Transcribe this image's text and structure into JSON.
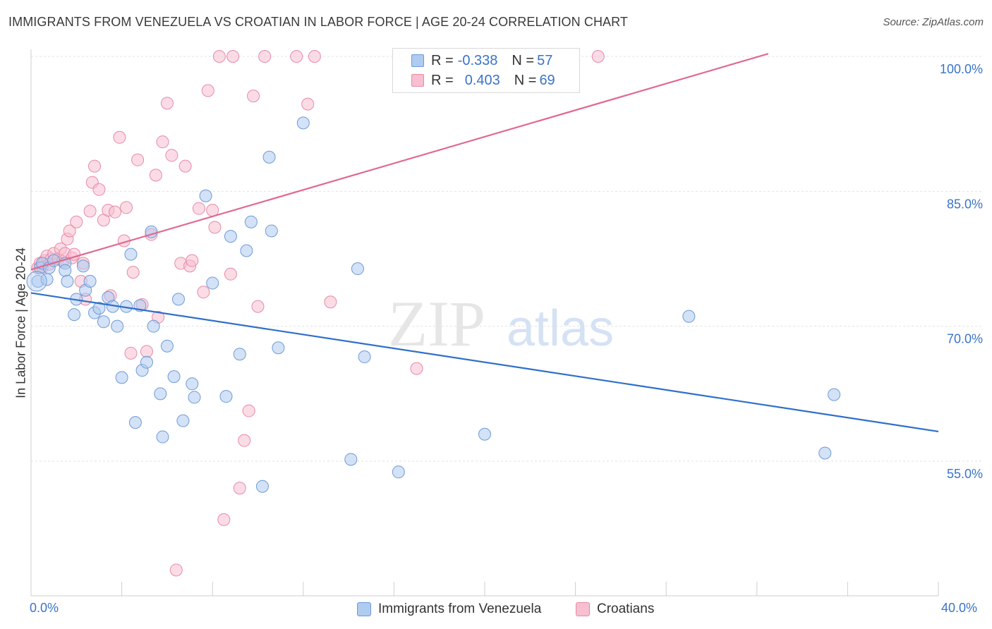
{
  "title": "IMMIGRANTS FROM VENEZUELA VS CROATIAN IN LABOR FORCE | AGE 20-24 CORRELATION CHART",
  "source": "Source: ZipAtlas.com",
  "watermark": {
    "zip": "ZIP",
    "atlas": "atlas"
  },
  "legend": {
    "rows": [
      {
        "r_label": "R = ",
        "r_value": "-0.338",
        "n_label": "N = ",
        "n_value": "57"
      },
      {
        "r_label": "R = ",
        "r_value": "0.403",
        "n_label": "N = ",
        "n_value": "69"
      }
    ]
  },
  "axis": {
    "ylabel": "In Labor Force | Age 20-24",
    "x_min_label": "0.0%",
    "x_max_label": "40.0%",
    "y_tick_labels": [
      "100.0%",
      "85.0%",
      "70.0%",
      "55.0%"
    ]
  },
  "colors": {
    "blue_fill": "#aecbf0",
    "blue_stroke": "#6f9ad6",
    "blue_line": "#2f6fc9",
    "pink_fill": "#f7bfcf",
    "pink_stroke": "#e68aa5",
    "pink_line": "#e0698f",
    "tick_text": "#3a74c8",
    "grid": "#e3e3e3"
  },
  "chart_data": {
    "type": "scatter",
    "title": "IMMIGRANTS FROM VENEZUELA VS CROATIAN IN LABOR FORCE | AGE 20-24 CORRELATION CHART",
    "xlabel": "",
    "ylabel": "In Labor Force | Age 20-24",
    "xlim": [
      0,
      40
    ],
    "ylim": [
      40,
      101
    ],
    "y_ticks": [
      55,
      70,
      85,
      100
    ],
    "grid": true,
    "legend_position": "top-center",
    "series": [
      {
        "name": "Immigrants from Venezuela",
        "color": "#aecbf0",
        "r": -0.338,
        "n": 57,
        "trend": {
          "x": [
            0,
            40
          ],
          "y": [
            73.7,
            58.3
          ]
        },
        "points": [
          [
            0.3,
            75.0
          ],
          [
            0.4,
            76.5
          ],
          [
            0.5,
            77.0
          ],
          [
            0.7,
            75.2
          ],
          [
            0.8,
            76.5
          ],
          [
            1.0,
            77.3
          ],
          [
            1.5,
            77.0
          ],
          [
            1.5,
            76.2
          ],
          [
            1.6,
            75.0
          ],
          [
            1.9,
            71.3
          ],
          [
            2.0,
            73.0
          ],
          [
            2.3,
            76.7
          ],
          [
            2.4,
            74.0
          ],
          [
            2.6,
            75.0
          ],
          [
            2.8,
            71.5
          ],
          [
            3.0,
            72.0
          ],
          [
            3.2,
            70.5
          ],
          [
            3.4,
            73.2
          ],
          [
            3.6,
            72.2
          ],
          [
            3.8,
            70.0
          ],
          [
            4.0,
            64.3
          ],
          [
            4.2,
            72.2
          ],
          [
            4.4,
            78.0
          ],
          [
            4.6,
            59.3
          ],
          [
            4.8,
            72.3
          ],
          [
            4.9,
            65.1
          ],
          [
            5.1,
            66.0
          ],
          [
            5.3,
            80.5
          ],
          [
            5.4,
            70.0
          ],
          [
            5.7,
            62.5
          ],
          [
            5.8,
            57.7
          ],
          [
            6.0,
            67.8
          ],
          [
            6.3,
            64.4
          ],
          [
            6.5,
            73.0
          ],
          [
            6.7,
            59.5
          ],
          [
            7.1,
            63.6
          ],
          [
            7.2,
            62.1
          ],
          [
            7.7,
            84.5
          ],
          [
            8.0,
            74.8
          ],
          [
            8.6,
            62.2
          ],
          [
            8.8,
            80.0
          ],
          [
            9.2,
            66.9
          ],
          [
            9.5,
            78.4
          ],
          [
            9.7,
            81.6
          ],
          [
            10.2,
            52.2
          ],
          [
            10.5,
            88.8
          ],
          [
            10.6,
            80.6
          ],
          [
            10.9,
            67.6
          ],
          [
            12.0,
            92.6
          ],
          [
            14.1,
            55.2
          ],
          [
            14.4,
            76.4
          ],
          [
            14.7,
            66.6
          ],
          [
            16.2,
            53.8
          ],
          [
            20.0,
            58.0
          ],
          [
            29.0,
            71.1
          ],
          [
            35.0,
            55.9
          ],
          [
            35.4,
            62.4
          ]
        ]
      },
      {
        "name": "Croatians",
        "color": "#f7bfcf",
        "r": 0.403,
        "n": 69,
        "trend": {
          "x": [
            0,
            32.5
          ],
          "y": [
            76.3,
            100.3
          ]
        },
        "points": [
          [
            0.3,
            76.5
          ],
          [
            0.4,
            77.0
          ],
          [
            0.5,
            76.6
          ],
          [
            0.6,
            77.3
          ],
          [
            0.7,
            77.8
          ],
          [
            0.8,
            76.9
          ],
          [
            0.9,
            77.5
          ],
          [
            1.0,
            78.1
          ],
          [
            1.2,
            77.5
          ],
          [
            1.3,
            78.6
          ],
          [
            1.4,
            77.2
          ],
          [
            1.5,
            78.1
          ],
          [
            1.6,
            79.7
          ],
          [
            1.7,
            80.6
          ],
          [
            1.8,
            77.6
          ],
          [
            1.9,
            78.0
          ],
          [
            2.0,
            81.6
          ],
          [
            2.2,
            75.0
          ],
          [
            2.3,
            77.0
          ],
          [
            2.4,
            73.0
          ],
          [
            2.6,
            82.8
          ],
          [
            2.7,
            86.0
          ],
          [
            2.8,
            87.8
          ],
          [
            3.0,
            85.2
          ],
          [
            3.2,
            81.8
          ],
          [
            3.4,
            82.9
          ],
          [
            3.5,
            73.4
          ],
          [
            3.7,
            82.7
          ],
          [
            3.9,
            91.0
          ],
          [
            4.1,
            79.5
          ],
          [
            4.2,
            83.2
          ],
          [
            4.4,
            67.0
          ],
          [
            4.5,
            76.0
          ],
          [
            4.7,
            88.5
          ],
          [
            4.9,
            72.4
          ],
          [
            5.1,
            67.2
          ],
          [
            5.3,
            80.2
          ],
          [
            5.5,
            86.8
          ],
          [
            5.6,
            71.0
          ],
          [
            5.8,
            90.5
          ],
          [
            6.0,
            94.8
          ],
          [
            6.2,
            89.0
          ],
          [
            6.4,
            42.9
          ],
          [
            6.6,
            77.0
          ],
          [
            6.8,
            87.8
          ],
          [
            7.0,
            76.7
          ],
          [
            7.1,
            77.3
          ],
          [
            7.4,
            83.1
          ],
          [
            7.6,
            73.8
          ],
          [
            7.8,
            96.2
          ],
          [
            8.0,
            82.9
          ],
          [
            8.1,
            81.0
          ],
          [
            8.3,
            100.0
          ],
          [
            8.5,
            48.5
          ],
          [
            8.8,
            75.8
          ],
          [
            8.9,
            100.0
          ],
          [
            9.2,
            52.0
          ],
          [
            9.4,
            57.3
          ],
          [
            9.6,
            60.6
          ],
          [
            9.8,
            95.6
          ],
          [
            10.0,
            72.2
          ],
          [
            10.3,
            100.0
          ],
          [
            11.7,
            100.0
          ],
          [
            12.2,
            94.7
          ],
          [
            12.5,
            100.0
          ],
          [
            13.2,
            72.7
          ],
          [
            16.5,
            100.0
          ],
          [
            17.0,
            65.3
          ],
          [
            25.0,
            100.0
          ]
        ]
      }
    ],
    "extra_points_note": ""
  },
  "bottom_legend": [
    "Immigrants from Venezuela",
    "Croatians"
  ]
}
